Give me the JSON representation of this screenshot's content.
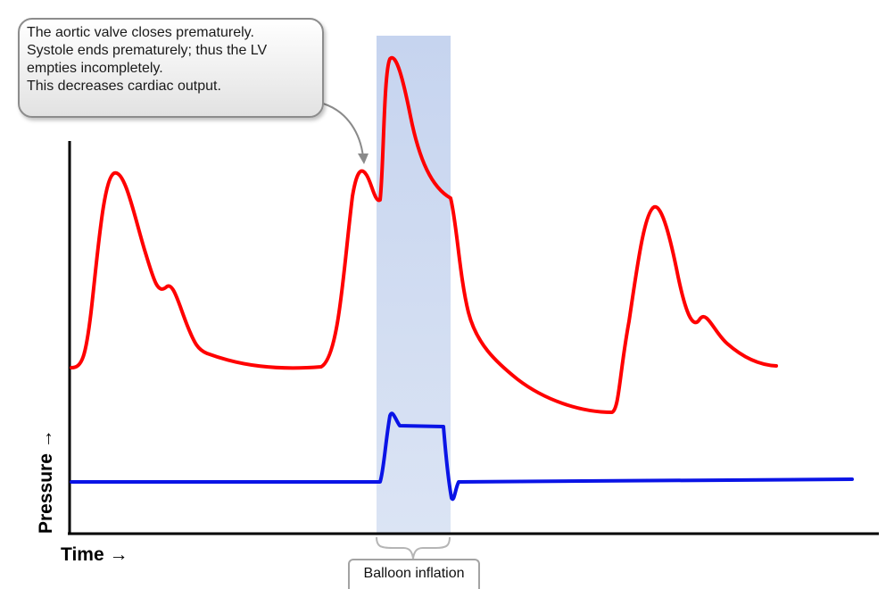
{
  "callout": {
    "lines": [
      "The aortic valve closes prematurely.",
      "Systole ends prematurely; thus the LV",
      "empties incompletely.",
      "This decreases cardiac output."
    ]
  },
  "axes": {
    "x_label": "Time →",
    "y_label": "Pressure →"
  },
  "balloon": {
    "label": "Balloon inflation"
  },
  "colors": {
    "arterial_pressure": "#ff0000",
    "balloon_pressure": "#0a14e6",
    "inflation_band": "#cdd9ef"
  }
}
